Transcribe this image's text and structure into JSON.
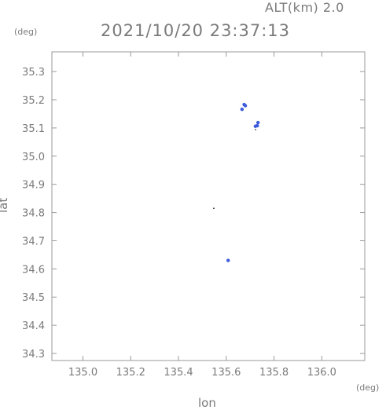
{
  "header": {
    "altitude_label": "ALT(km) 2.0",
    "timestamp": "2021/10/20 23:37:13"
  },
  "units": {
    "y_unit": "(deg)",
    "x_unit": "(deg)"
  },
  "chart_data": {
    "type": "scatter",
    "title": "2021/10/20 23:37:13",
    "xlabel": "lon",
    "ylabel": "lat",
    "xlim": [
      134.87,
      136.18
    ],
    "ylim": [
      34.275,
      35.37
    ],
    "xticks": [
      135.0,
      135.2,
      135.4,
      135.6,
      135.8,
      136.0
    ],
    "yticks": [
      34.3,
      34.4,
      34.5,
      34.6,
      34.7,
      34.8,
      34.9,
      35.0,
      35.1,
      35.2,
      35.3
    ],
    "xtick_labels": [
      "135.0",
      "135.2",
      "135.4",
      "135.6",
      "135.8",
      "136.0"
    ],
    "ytick_labels": [
      "34.3",
      "34.4",
      "34.5",
      "34.6",
      "34.7",
      "34.8",
      "34.9",
      "35.0",
      "35.1",
      "35.2",
      "35.3"
    ],
    "grid": false,
    "series": [
      {
        "color": "#3b5bdb",
        "points": [
          {
            "x": 135.675,
            "y": 35.183
          },
          {
            "x": 135.68,
            "y": 35.179
          },
          {
            "x": 135.666,
            "y": 35.166
          },
          {
            "x": 135.733,
            "y": 35.119
          },
          {
            "x": 135.73,
            "y": 35.108
          },
          {
            "x": 135.722,
            "y": 35.106
          },
          {
            "x": 135.608,
            "y": 34.63
          }
        ]
      },
      {
        "color": "#000000",
        "points": [
          {
            "x": 135.723,
            "y": 35.094
          },
          {
            "x": 135.548,
            "y": 34.815
          }
        ]
      }
    ]
  }
}
